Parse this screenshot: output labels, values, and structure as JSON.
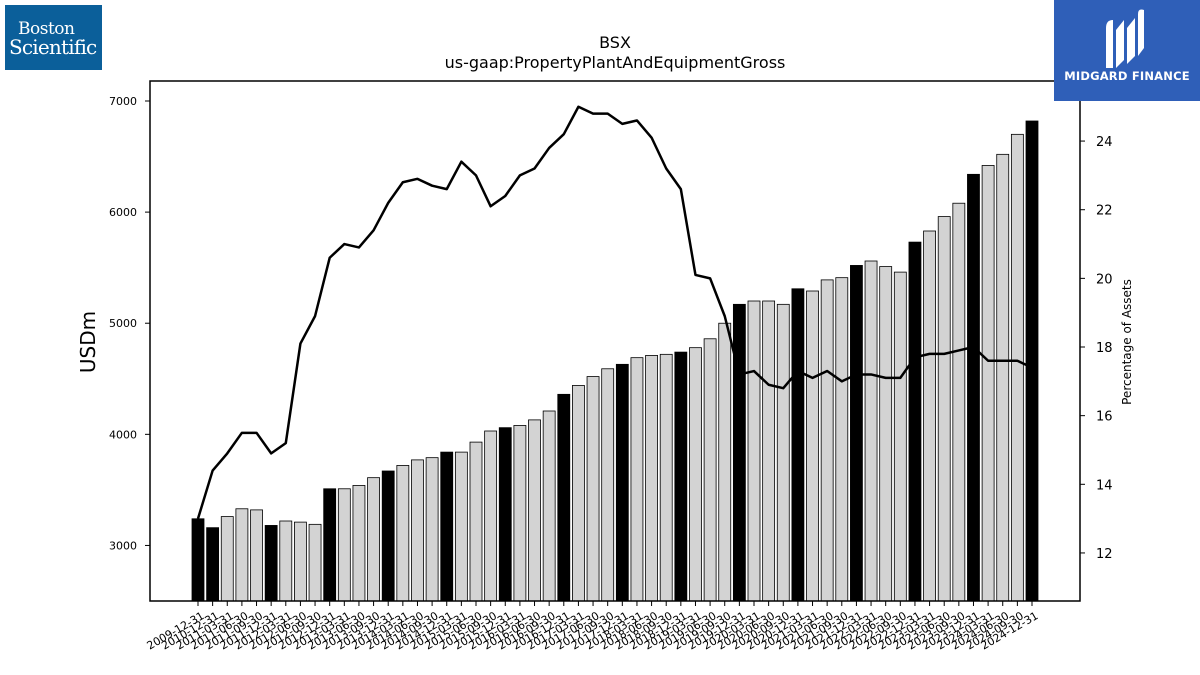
{
  "logos": {
    "left_line1": "Boston",
    "left_line2": "Scientific",
    "right_text": "MIDGARD FINANCE",
    "left_color": "#0b5f9a",
    "right_color": "#2f5fb8"
  },
  "chart_data": {
    "type": "bar",
    "title": "BSX",
    "subtitle": "us-gaap:PropertyPlantAndEquipmentGross",
    "ylabel": "USDm",
    "y2label": "Percentage of Assets",
    "ylim": [
      2500,
      7180
    ],
    "y2lim": [
      10.6,
      25.75
    ],
    "yticks": [
      3000,
      4000,
      5000,
      6000,
      7000
    ],
    "y2ticks": [
      12,
      14,
      16,
      18,
      20,
      22,
      24
    ],
    "grid": false,
    "colors": {
      "annual_bar": "#000000",
      "quarter_bar": "#d3d3d3",
      "line": "#000000"
    },
    "categories": [
      "2009-12-31",
      "2010-12-31",
      "2011-03-31",
      "2011-06-30",
      "2011-09-30",
      "2011-12-31",
      "2012-03-31",
      "2012-06-30",
      "2012-09-30",
      "2012-12-31",
      "2013-03-31",
      "2013-06-30",
      "2013-09-30",
      "2013-12-31",
      "2014-03-31",
      "2014-06-30",
      "2014-09-30",
      "2014-12-31",
      "2015-03-31",
      "2015-06-30",
      "2015-09-30",
      "2015-12-31",
      "2016-03-31",
      "2016-06-30",
      "2016-09-30",
      "2016-12-31",
      "2017-03-31",
      "2017-06-30",
      "2017-09-30",
      "2017-12-31",
      "2018-03-31",
      "2018-06-30",
      "2018-09-30",
      "2018-12-31",
      "2019-03-31",
      "2019-06-30",
      "2019-09-30",
      "2019-12-31",
      "2020-03-31",
      "2020-06-30",
      "2020-09-30",
      "2020-12-31",
      "2021-03-31",
      "2021-06-30",
      "2021-09-30",
      "2021-12-31",
      "2022-03-31",
      "2022-06-30",
      "2022-09-30",
      "2022-12-31",
      "2023-03-31",
      "2023-06-30",
      "2023-09-30",
      "2023-12-31",
      "2024-03-31",
      "2024-06-30",
      "2024-09-30",
      "2024-12-31"
    ],
    "annual": [
      1,
      1,
      0,
      0,
      0,
      1,
      0,
      0,
      0,
      1,
      0,
      0,
      0,
      1,
      0,
      0,
      0,
      1,
      0,
      0,
      0,
      1,
      0,
      0,
      0,
      1,
      0,
      0,
      0,
      1,
      0,
      0,
      0,
      1,
      0,
      0,
      0,
      1,
      0,
      0,
      0,
      1,
      0,
      0,
      0,
      1,
      0,
      0,
      0,
      1,
      0,
      0,
      0,
      1,
      0,
      0,
      0,
      1
    ],
    "series": [
      {
        "kind": "bar",
        "axis": "left",
        "values": [
          3240,
          3160,
          3260,
          3330,
          3320,
          3180,
          3220,
          3210,
          3190,
          3510,
          3510,
          3540,
          3610,
          3670,
          3720,
          3770,
          3790,
          3840,
          3840,
          3930,
          4030,
          4060,
          4080,
          4130,
          4210,
          4360,
          4440,
          4520,
          4590,
          4630,
          4690,
          4710,
          4720,
          4740,
          4780,
          4860,
          5000,
          5170,
          5200,
          5200,
          5170,
          5310,
          5290,
          5390,
          5410,
          5520,
          5560,
          5510,
          5460,
          5730,
          5830,
          5960,
          6080,
          6340,
          6420,
          6520,
          6700,
          6820
        ]
      },
      {
        "kind": "line",
        "axis": "right",
        "values": [
          13.0,
          14.4,
          14.9,
          15.5,
          15.5,
          14.9,
          15.2,
          18.1,
          18.9,
          20.6,
          21.0,
          20.9,
          21.4,
          22.2,
          22.8,
          22.9,
          22.7,
          22.6,
          23.4,
          23.0,
          22.1,
          22.4,
          23.0,
          23.2,
          23.8,
          24.2,
          25.0,
          24.8,
          24.8,
          24.5,
          24.6,
          24.1,
          23.2,
          22.6,
          20.1,
          20.0,
          18.9,
          17.2,
          17.3,
          16.9,
          16.8,
          17.3,
          17.1,
          17.3,
          17.0,
          17.2,
          17.2,
          17.1,
          17.1,
          17.7,
          17.8,
          17.8,
          17.9,
          18.0,
          17.6,
          17.6,
          17.6,
          17.4
        ]
      }
    ]
  }
}
